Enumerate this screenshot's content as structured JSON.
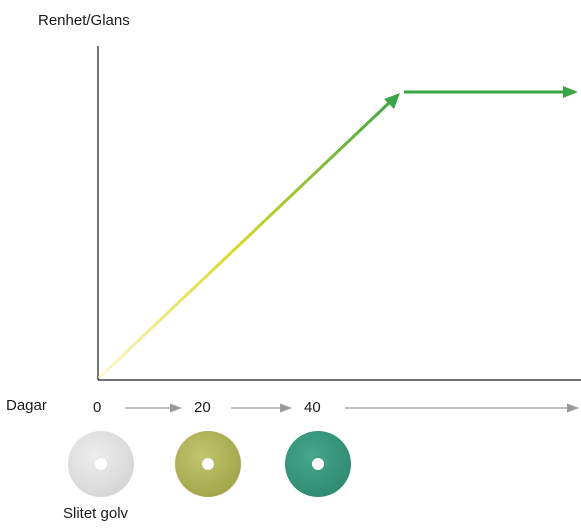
{
  "diagram": {
    "y_axis_label": "Renhet/Glans",
    "x_axis_label": "Dagar",
    "ticks": [
      "0",
      "20",
      "40"
    ],
    "caption": "Slitet golv",
    "colors": {
      "ramp_start": "#fff7cf",
      "ramp_mid": "#d9d92a",
      "ramp_end": "#3aa545",
      "plateau": "#3aa545",
      "axis": "#1a1a1a",
      "timeline_arrow": "#9a9a9a"
    },
    "pads": [
      {
        "name": "white-pad",
        "color": "#d6d6d6",
        "highlight": "#ededed"
      },
      {
        "name": "olive-pad",
        "color": "#a3a64a",
        "highlight": "#c1c46e"
      },
      {
        "name": "green-pad",
        "color": "#2f8c72",
        "highlight": "#46a58a"
      }
    ]
  }
}
